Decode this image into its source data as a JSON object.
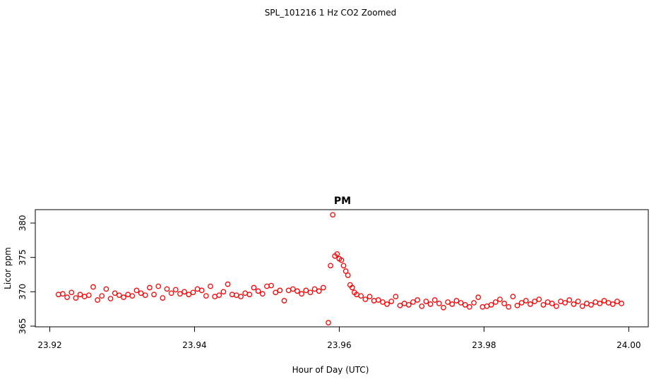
{
  "title": "SPL_101216  1 Hz CO2 Zoomed",
  "chart_data": {
    "type": "scatter",
    "title": "PM",
    "x_label": "Hour of Day (UTC)",
    "y_label": "Licor ppm",
    "xlim": [
      23.918,
      24.0027
    ],
    "ylim": [
      364.9,
      381.95
    ],
    "xticks": [
      23.92,
      23.94,
      23.96,
      23.98,
      {
        "value": 24,
        "label": "24.00"
      }
    ],
    "yticks": [
      365,
      370,
      375,
      380
    ],
    "grid": false,
    "series": [
      {
        "color": "#ff0000",
        "x": [
          23.9212,
          23.9218,
          23.9224,
          23.923,
          23.9236,
          23.9242,
          23.9248,
          23.9254,
          23.926,
          23.9266,
          23.9272,
          23.9278,
          23.9284,
          23.929,
          23.9296,
          23.9302,
          23.9308,
          23.9314,
          23.932,
          23.9326,
          23.9332,
          23.9338,
          23.9344,
          23.935,
          23.9356,
          23.9362,
          23.9368,
          23.9374,
          23.938,
          23.9386,
          23.9392,
          23.9398,
          23.9404,
          23.941,
          23.9416,
          23.9422,
          23.9428,
          23.9434,
          23.944,
          23.9446,
          23.9452,
          23.9458,
          23.9464,
          23.947,
          23.9476,
          23.9482,
          23.9488,
          23.9494,
          23.95,
          23.9506,
          23.9512,
          23.9518,
          23.9524,
          23.953,
          23.9536,
          23.9542,
          23.9548,
          23.9554,
          23.956,
          23.9566,
          23.9572,
          23.9578,
          23.9585,
          23.9588,
          23.9591,
          23.9594,
          23.9597,
          23.96,
          23.9603,
          23.9606,
          23.9609,
          23.9612,
          23.9615,
          23.9618,
          23.9621,
          23.9624,
          23.963,
          23.9636,
          23.9642,
          23.9648,
          23.9654,
          23.966,
          23.9666,
          23.9672,
          23.9678,
          23.9684,
          23.969,
          23.9696,
          23.9702,
          23.9708,
          23.9714,
          23.972,
          23.9726,
          23.9732,
          23.9738,
          23.9744,
          23.975,
          23.9756,
          23.9762,
          23.9768,
          23.9774,
          23.978,
          23.9786,
          23.9792,
          23.9798,
          23.9804,
          23.981,
          23.9816,
          23.9822,
          23.9828,
          23.9834,
          23.984,
          23.9846,
          23.9852,
          23.9858,
          23.9864,
          23.987,
          23.9876,
          23.9882,
          23.9888,
          23.9894,
          23.99,
          23.9906,
          23.9912,
          23.9918,
          23.9924,
          23.993,
          23.9936,
          23.9942,
          23.9948,
          23.9954,
          23.996,
          23.9966,
          23.9972,
          23.9978,
          23.9984,
          23.999
        ],
        "values": [
          369.6,
          369.7,
          369.2,
          369.9,
          369.1,
          369.6,
          369.3,
          369.5,
          370.7,
          368.8,
          369.4,
          370.4,
          369.0,
          369.8,
          369.5,
          369.2,
          369.6,
          369.4,
          370.2,
          369.8,
          369.5,
          370.6,
          369.6,
          370.8,
          369.1,
          370.4,
          369.8,
          370.3,
          369.7,
          370.0,
          369.6,
          369.9,
          370.4,
          370.2,
          369.4,
          370.8,
          369.3,
          369.5,
          370.0,
          371.1,
          369.6,
          369.5,
          369.3,
          369.8,
          369.6,
          370.6,
          370.1,
          369.7,
          370.8,
          370.9,
          369.9,
          370.2,
          368.7,
          370.2,
          370.4,
          370.1,
          369.7,
          370.2,
          369.9,
          370.4,
          370.1,
          370.6,
          365.5,
          373.8,
          381.2,
          375.2,
          375.5,
          374.8,
          374.6,
          373.8,
          373.0,
          372.4,
          371.0,
          370.6,
          369.9,
          369.6,
          369.4,
          368.9,
          369.3,
          368.7,
          368.8,
          368.5,
          368.2,
          368.6,
          369.3,
          368.0,
          368.3,
          368.1,
          368.5,
          368.8,
          367.9,
          368.6,
          368.2,
          368.8,
          368.3,
          367.7,
          368.5,
          368.2,
          368.7,
          368.4,
          368.1,
          367.8,
          368.4,
          369.2,
          367.8,
          367.9,
          368.1,
          368.5,
          368.9,
          368.3,
          367.8,
          369.3,
          368.0,
          368.4,
          368.7,
          368.2,
          368.6,
          368.9,
          368.1,
          368.5,
          368.3,
          367.9,
          368.6,
          368.4,
          368.8,
          368.2,
          368.6,
          367.9,
          368.3,
          368.1,
          368.5,
          368.3,
          368.7,
          368.4,
          368.2,
          368.6,
          368.3
        ]
      }
    ]
  }
}
